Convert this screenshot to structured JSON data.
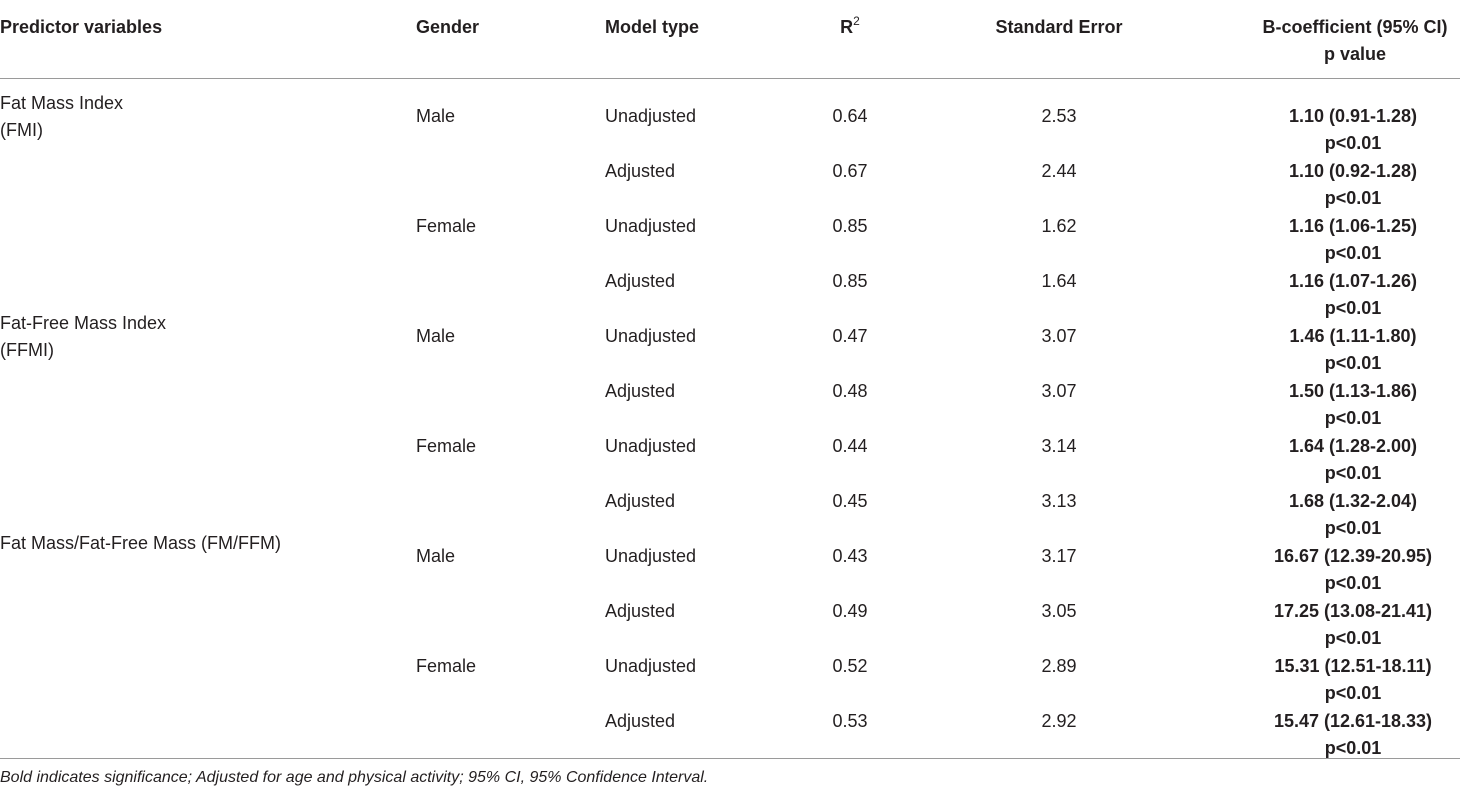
{
  "table": {
    "headers": {
      "predictor": "Predictor variables",
      "gender": "Gender",
      "model": "Model type",
      "r2_base": "R",
      "r2_sup": "2",
      "se": "Standard Error",
      "coef_line1": "B-coefficient (95% CI)",
      "coef_line2": "p value"
    },
    "groups": [
      {
        "line1": "Fat Mass Index",
        "line2": "(FMI)"
      },
      {
        "line1": "Fat-Free Mass Index",
        "line2": "(FFMI)"
      },
      {
        "line1": "Fat Mass/Fat-Free Mass (FM/FFM)",
        "line2": ""
      }
    ],
    "rows": [
      {
        "gender": "Male",
        "model": "Unadjusted",
        "r2": "0.64",
        "se": "2.53",
        "coef": "1.10 (0.91-1.28)",
        "p": "p<0.01"
      },
      {
        "gender": "",
        "model": "Adjusted",
        "r2": "0.67",
        "se": "2.44",
        "coef": "1.10 (0.92-1.28)",
        "p": "p<0.01"
      },
      {
        "gender": "Female",
        "model": "Unadjusted",
        "r2": "0.85",
        "se": "1.62",
        "coef": "1.16 (1.06-1.25)",
        "p": "p<0.01"
      },
      {
        "gender": "",
        "model": "Adjusted",
        "r2": "0.85",
        "se": "1.64",
        "coef": "1.16 (1.07-1.26)",
        "p": "p<0.01"
      },
      {
        "gender": "Male",
        "model": "Unadjusted",
        "r2": "0.47",
        "se": "3.07",
        "coef": "1.46 (1.11-1.80)",
        "p": "p<0.01"
      },
      {
        "gender": "",
        "model": "Adjusted",
        "r2": "0.48",
        "se": "3.07",
        "coef": "1.50 (1.13-1.86)",
        "p": "p<0.01"
      },
      {
        "gender": "Female",
        "model": "Unadjusted",
        "r2": "0.44",
        "se": "3.14",
        "coef": "1.64 (1.28-2.00)",
        "p": "p<0.01"
      },
      {
        "gender": "",
        "model": "Adjusted",
        "r2": "0.45",
        "se": "3.13",
        "coef": "1.68 (1.32-2.04)",
        "p": "p<0.01"
      },
      {
        "gender": "Male",
        "model": "Unadjusted",
        "r2": "0.43",
        "se": "3.17",
        "coef": "16.67 (12.39-20.95)",
        "p": "p<0.01"
      },
      {
        "gender": "",
        "model": "Adjusted",
        "r2": "0.49",
        "se": "3.05",
        "coef": "17.25 (13.08-21.41)",
        "p": "p<0.01"
      },
      {
        "gender": "Female",
        "model": "Unadjusted",
        "r2": "0.52",
        "se": "2.89",
        "coef": "15.31 (12.51-18.11)",
        "p": "p<0.01"
      },
      {
        "gender": "",
        "model": "Adjusted",
        "r2": "0.53",
        "se": "2.92",
        "coef": "15.47 (12.61-18.33)",
        "p": "p<0.01"
      }
    ]
  },
  "footnote": "Bold indicates significance; Adjusted for age and physical activity; 95% CI, 95% Confidence Interval."
}
